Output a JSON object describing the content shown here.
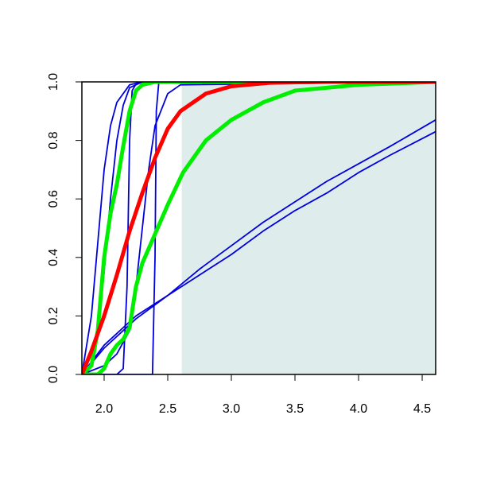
{
  "chart_data": {
    "type": "line",
    "xlim": [
      1.825,
      4.606
    ],
    "ylim": [
      0,
      1
    ],
    "xticks": [
      {
        "value": 2,
        "label": "2.0"
      },
      2.5,
      {
        "value": 3,
        "label": "3.0"
      },
      3.5,
      {
        "value": 4,
        "label": "4.0"
      },
      4.5
    ],
    "yticks": [
      {
        "value": 0,
        "label": "0.0"
      },
      0.2,
      0.4,
      0.6,
      0.8,
      {
        "value": 1,
        "label": "1.0"
      }
    ],
    "shaded_region": {
      "x": [
        2.61,
        4.606
      ],
      "y": [
        0,
        0.99
      ],
      "color": "#deecec"
    },
    "series": [
      {
        "color": "#0000dd",
        "width": 1.8,
        "x": [
          1.825,
          1.9,
          1.95,
          2.0,
          2.05,
          2.1,
          2.2,
          2.3,
          4.606
        ],
        "values": [
          0,
          0.2,
          0.45,
          0.7,
          0.85,
          0.93,
          0.99,
          1,
          1
        ]
      },
      {
        "color": "#0000dd",
        "width": 1.8,
        "x": [
          1.825,
          1.95,
          2.0,
          2.05,
          2.1,
          2.15,
          2.2,
          2.3,
          4.606
        ],
        "values": [
          0,
          0.15,
          0.35,
          0.6,
          0.8,
          0.92,
          0.98,
          1,
          1
        ]
      },
      {
        "color": "#0000dd",
        "width": 1.8,
        "x": [
          1.825,
          2.1,
          2.15,
          2.18,
          2.2,
          2.22,
          2.26,
          4.606
        ],
        "values": [
          0,
          0,
          0.02,
          0.3,
          0.8,
          0.97,
          1,
          1
        ]
      },
      {
        "color": "#0000dd",
        "width": 1.8,
        "x": [
          1.825,
          2.38,
          2.4,
          2.41,
          2.43,
          4.606
        ],
        "values": [
          0,
          0,
          0.4,
          0.9,
          1,
          1
        ]
      },
      {
        "color": "#0000dd",
        "width": 1.8,
        "x": [
          1.825,
          2.0,
          2.1,
          2.2,
          2.25,
          2.3,
          2.35,
          2.4,
          2.5,
          2.6,
          4.606
        ],
        "values": [
          0,
          0.03,
          0.07,
          0.15,
          0.3,
          0.5,
          0.7,
          0.85,
          0.96,
          0.99,
          1
        ]
      },
      {
        "color": "#0000dd",
        "width": 1.8,
        "x": [
          1.825,
          2.0,
          2.25,
          2.5,
          2.75,
          3.0,
          3.25,
          3.5,
          3.75,
          4.0,
          4.25,
          4.606
        ],
        "values": [
          0,
          0.09,
          0.19,
          0.27,
          0.36,
          0.44,
          0.52,
          0.59,
          0.66,
          0.72,
          0.78,
          0.87
        ]
      },
      {
        "color": "#0000dd",
        "width": 1.8,
        "x": [
          1.825,
          2.0,
          2.25,
          2.5,
          2.75,
          3.0,
          3.25,
          3.5,
          3.75,
          4.0,
          4.25,
          4.606
        ],
        "values": [
          0,
          0.1,
          0.2,
          0.27,
          0.34,
          0.41,
          0.49,
          0.56,
          0.62,
          0.69,
          0.75,
          0.83
        ]
      },
      {
        "color": "#00ee00",
        "width": 5,
        "x": [
          1.825,
          1.9,
          1.95,
          2.0,
          2.05,
          2.1,
          2.15,
          2.2,
          2.25,
          2.3,
          2.4,
          4.606
        ],
        "values": [
          0,
          0.03,
          0.15,
          0.4,
          0.55,
          0.65,
          0.78,
          0.9,
          0.97,
          0.99,
          1,
          1
        ]
      },
      {
        "color": "#00ee00",
        "width": 5,
        "x": [
          1.825,
          1.95,
          2.0,
          2.05,
          2.1,
          2.15,
          2.2,
          2.25,
          2.3,
          2.4,
          2.5,
          2.62,
          2.8,
          3.0,
          3.25,
          3.5,
          4.0,
          4.606
        ],
        "values": [
          0,
          0,
          0.02,
          0.07,
          0.1,
          0.12,
          0.16,
          0.3,
          0.38,
          0.48,
          0.58,
          0.69,
          0.8,
          0.87,
          0.93,
          0.97,
          0.99,
          1
        ]
      },
      {
        "color": "#ff0000",
        "width": 5,
        "x": [
          1.825,
          1.9,
          2.0,
          2.1,
          2.2,
          2.3,
          2.4,
          2.5,
          2.6,
          2.8,
          3.0,
          3.3,
          3.7,
          4.606
        ],
        "values": [
          0,
          0.08,
          0.2,
          0.34,
          0.49,
          0.62,
          0.74,
          0.84,
          0.9,
          0.96,
          0.985,
          0.997,
          1,
          1
        ]
      }
    ]
  }
}
